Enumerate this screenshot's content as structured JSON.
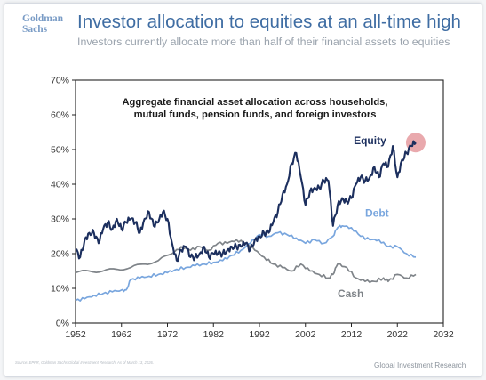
{
  "header": {
    "logo_line1": "Goldman",
    "logo_line2": "Sachs",
    "title": "Investor allocation to equities at an all-time high",
    "subtitle": "Investors currently allocate more than half of their financial assets to equities"
  },
  "footer": {
    "source": "Source: EPFR, Goldman Sachs Global Investment Research. As of March 13, 2026.",
    "brand": "Global Investment Research"
  },
  "chart_data": {
    "type": "line",
    "annotation": "Aggregate financial asset allocation across households, mutual funds, pension funds, and foreign investors",
    "annotation_lines": [
      "Aggregate financial asset allocation across households,",
      "mutual funds, pension funds, and foreign investors"
    ],
    "xlim": [
      1952,
      2032
    ],
    "ylim": [
      0,
      70
    ],
    "x_ticks": [
      1952,
      1962,
      1972,
      1982,
      1992,
      2002,
      2012,
      2022,
      2032
    ],
    "x_tick_labels": [
      "1952",
      "1962",
      "1972",
      "1982",
      "1992",
      "2002",
      "2012",
      "2022",
      "2032"
    ],
    "y_ticks": [
      0,
      10,
      20,
      30,
      40,
      50,
      60,
      70
    ],
    "y_tick_labels": [
      "0%",
      "10%",
      "20%",
      "30%",
      "40%",
      "50%",
      "60%",
      "70%"
    ],
    "grid": false,
    "legend": "direct labels",
    "highlight": {
      "x": 2026,
      "y": 52,
      "color": "#e59a9f"
    },
    "series": [
      {
        "name": "Equity",
        "color": "#1c2f5e",
        "label_at": [
          2012.5,
          51.5
        ],
        "x": [
          1952,
          1953,
          1954,
          1955,
          1956,
          1957,
          1958,
          1959,
          1960,
          1961,
          1962,
          1963,
          1964,
          1965,
          1966,
          1967,
          1968,
          1969,
          1970,
          1971,
          1972,
          1973,
          1974,
          1975,
          1976,
          1977,
          1978,
          1979,
          1980,
          1981,
          1982,
          1983,
          1984,
          1985,
          1986,
          1987,
          1988,
          1989,
          1990,
          1991,
          1992,
          1993,
          1994,
          1995,
          1996,
          1997,
          1998,
          1999,
          2000,
          2001,
          2002,
          2003,
          2004,
          2005,
          2006,
          2007,
          2008,
          2009,
          2010,
          2011,
          2012,
          2013,
          2014,
          2015,
          2016,
          2017,
          2018,
          2019,
          2020,
          2021,
          2022,
          2023,
          2024,
          2025,
          2026
        ],
        "values": [
          21,
          19,
          24,
          26,
          26,
          23,
          27,
          29,
          27,
          30,
          27,
          29,
          30,
          29,
          26,
          30,
          32,
          28,
          29,
          32,
          30,
          23,
          18,
          21,
          22,
          19,
          19,
          20,
          22,
          19,
          20,
          20,
          20,
          21,
          22,
          22,
          22,
          23,
          21,
          24,
          25,
          26,
          26,
          29,
          32,
          37,
          40,
          46,
          49,
          42,
          34,
          38,
          39,
          39,
          41,
          41,
          28,
          34,
          36,
          35,
          36,
          40,
          42,
          41,
          42,
          45,
          42,
          46,
          45,
          51,
          42,
          47,
          49,
          51,
          52
        ]
      },
      {
        "name": "Debt",
        "color": "#79a6de",
        "label_at": [
          2015,
          30.6
        ],
        "x": [
          1952,
          1954,
          1956,
          1958,
          1960,
          1962,
          1963,
          1964,
          1966,
          1968,
          1970,
          1972,
          1974,
          1976,
          1978,
          1980,
          1982,
          1984,
          1986,
          1988,
          1990,
          1992,
          1994,
          1996,
          1998,
          2000,
          2002,
          2004,
          2006,
          2008,
          2009,
          2010,
          2012,
          2014,
          2016,
          2018,
          2020,
          2022,
          2024,
          2026
        ],
        "values": [
          6.5,
          7,
          8,
          8.5,
          9,
          9.5,
          9.5,
          12.5,
          13,
          13.5,
          14,
          14.5,
          15.5,
          16,
          16.5,
          17,
          17.5,
          18,
          19.5,
          21,
          23,
          25.5,
          25,
          26,
          25.5,
          24.5,
          23,
          24,
          23,
          25,
          27.5,
          28,
          27.5,
          25,
          24,
          24,
          22,
          22,
          20,
          19
        ]
      },
      {
        "name": "Cash",
        "color": "#7f8489",
        "label_at": [
          2009,
          7.5
        ],
        "x": [
          1952,
          1955,
          1958,
          1961,
          1964,
          1967,
          1970,
          1973,
          1975,
          1977,
          1979,
          1981,
          1983,
          1985,
          1987,
          1989,
          1991,
          1993,
          1995,
          1997,
          1999,
          2001,
          2003,
          2005,
          2007,
          2008,
          2009,
          2011,
          2013,
          2015,
          2017,
          2019,
          2020,
          2022,
          2024,
          2026
        ],
        "values": [
          14.5,
          15,
          15,
          15.5,
          16,
          17,
          18,
          20,
          22,
          21,
          22,
          21,
          23,
          23,
          24,
          23,
          21,
          19,
          17,
          16,
          15,
          17,
          15,
          14,
          13,
          14,
          17,
          16,
          13,
          12,
          12,
          13,
          12,
          14,
          13,
          14
        ]
      }
    ]
  }
}
